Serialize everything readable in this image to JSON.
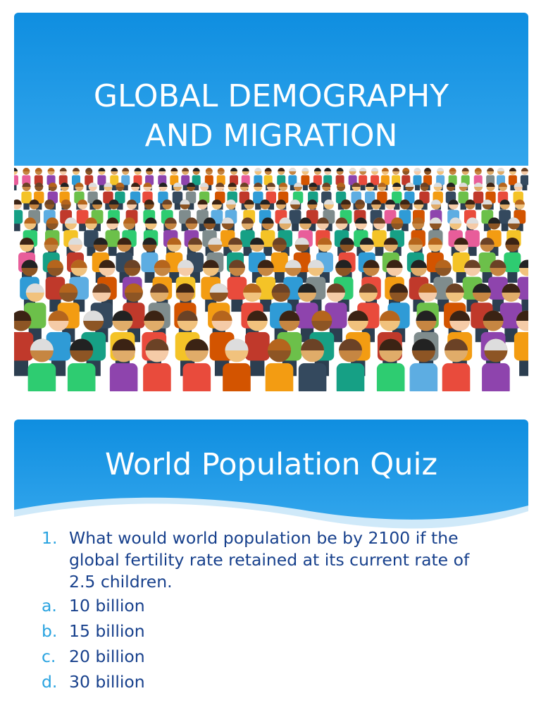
{
  "slides": [
    {
      "title_lines": [
        "GLOBAL DEMOGRAPHY",
        "AND MIGRATION"
      ]
    },
    {
      "title": "World Population Quiz",
      "question": {
        "marker": "1.",
        "text": "What would world population be by 2100 if the global fertility rate retained at its current rate of 2.5 children."
      },
      "options": [
        {
          "marker": "a.",
          "text": "10 billion"
        },
        {
          "marker": "b.",
          "text": "15 billion"
        },
        {
          "marker": "c.",
          "text": "20 billion"
        },
        {
          "marker": "d.",
          "text": "30 billion"
        }
      ]
    }
  ]
}
